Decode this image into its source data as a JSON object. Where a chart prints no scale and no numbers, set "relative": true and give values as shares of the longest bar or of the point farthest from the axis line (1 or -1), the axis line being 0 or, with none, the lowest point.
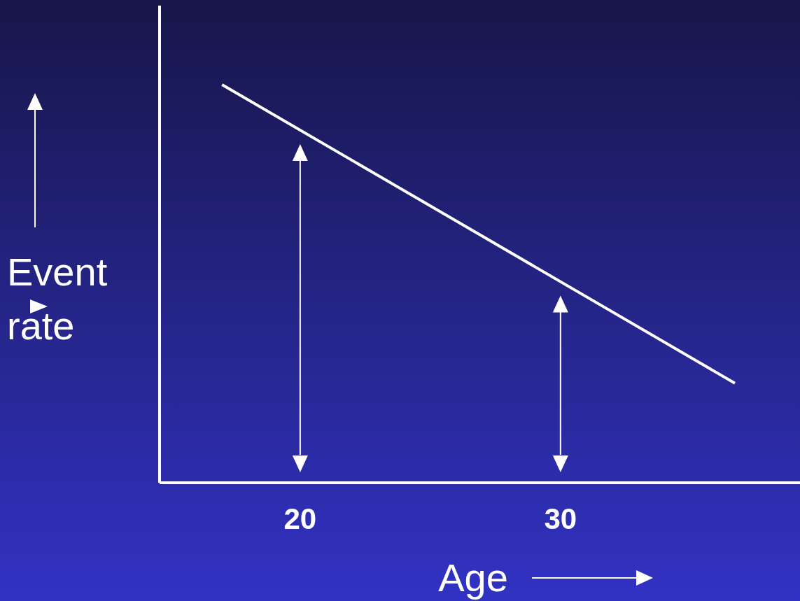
{
  "chart_data": {
    "type": "line",
    "xlabel": "Age",
    "ylabel": "Event rate",
    "x": [
      17,
      36.7
    ],
    "series": [
      {
        "color": "#ffffff",
        "values": [
          1,
          0.25
        ]
      }
    ],
    "relative": true,
    "xlim": [
      14.6,
      39.2
    ],
    "xticks": [
      20,
      30
    ],
    "marker": "none",
    "line_style": "solid"
  }
}
